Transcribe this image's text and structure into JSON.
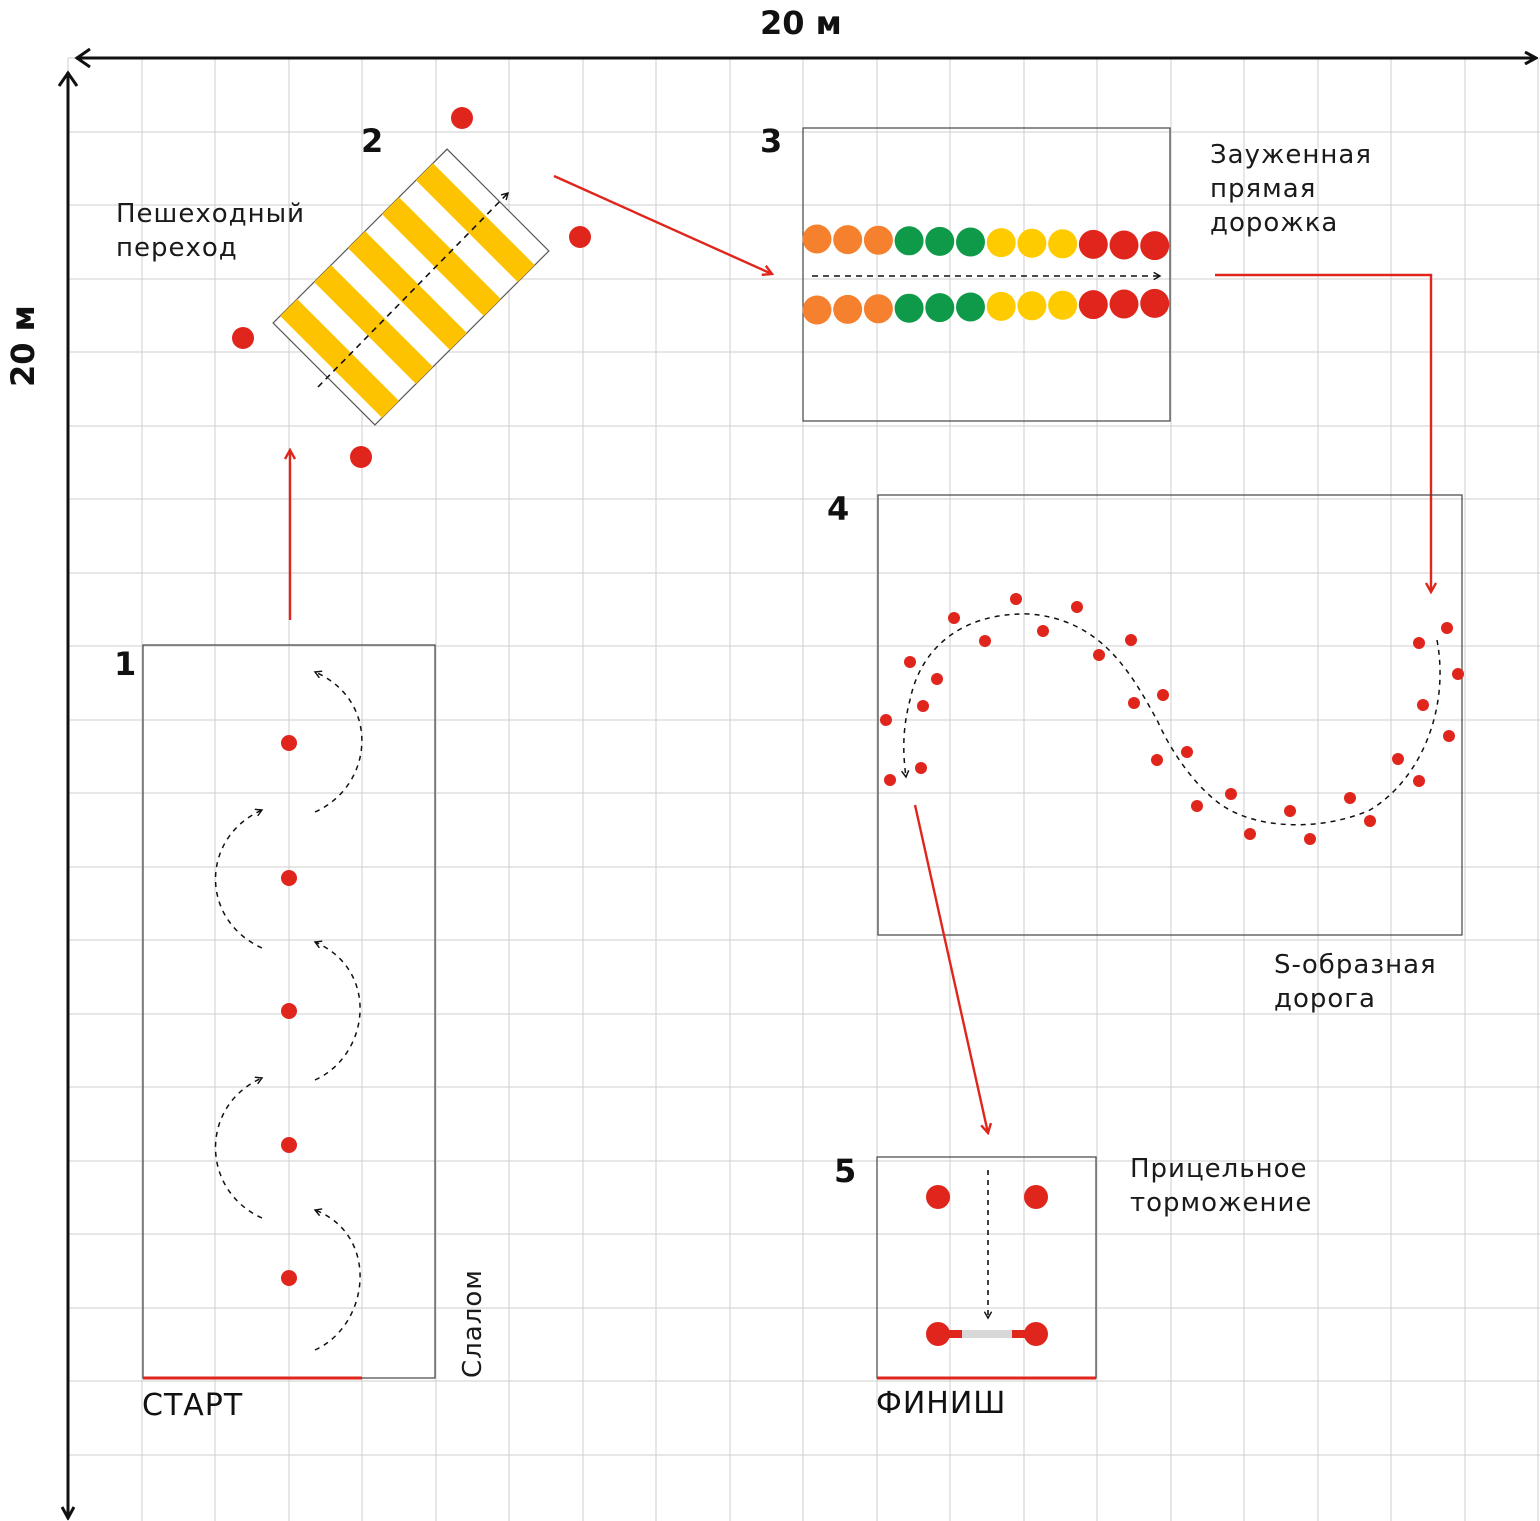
{
  "dimensions": {
    "width_label": "20 м",
    "height_label": "20 м"
  },
  "colors": {
    "grid": "#cfcfcf",
    "box": "#444444",
    "red": "#e0261c",
    "yellow": "#fdc300",
    "orange": "#f5812f",
    "green": "#0f9a4a",
    "gold": "#fecb00",
    "bar": "#d8d8d8"
  },
  "stations": [
    {
      "number": "1",
      "name": "Слалом"
    },
    {
      "number": "2",
      "name": "Пешеходный\nпереход"
    },
    {
      "number": "3",
      "name": "Зауженная\nпрямая\nдорожка"
    },
    {
      "number": "4",
      "name": "S-образная\nдорога"
    },
    {
      "number": "5",
      "name": "Прицельное\nторможение"
    }
  ],
  "start_label": "СТАРТ",
  "finish_label": "ФИНИШ",
  "cone_row_colors": [
    "orange",
    "orange",
    "orange",
    "green",
    "green",
    "green",
    "gold",
    "gold",
    "gold",
    "red",
    "red",
    "red"
  ]
}
